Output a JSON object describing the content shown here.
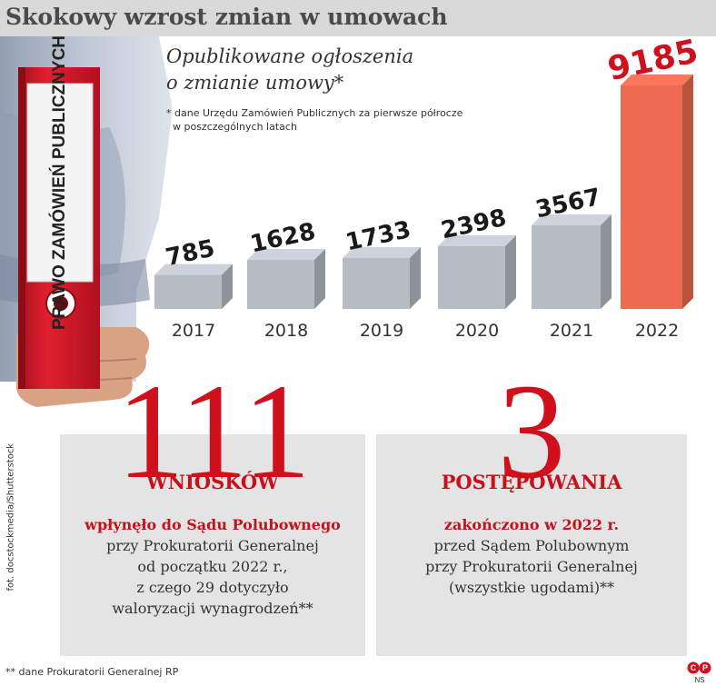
{
  "page": {
    "title": "Skokowy wzrost zmian w umowach",
    "subtitle": "Opublikowane ogłoszenia\no zmianie umowy*",
    "footnote": "* dane Urzędu Zamówień Publicznych za pierwsze półrocze\n  w poszczególnych latach",
    "folder_label": "PRAWO ZAMÓWIEŃ\nPUBLICZNYCH",
    "photo_credit": "fot. docstockmedia/Shutterstock",
    "bottom_note": "** dane Prokuratorii Generalnej RP",
    "logo_text": "NS"
  },
  "chart_data": {
    "type": "bar",
    "categories": [
      "2017",
      "2018",
      "2019",
      "2020",
      "2021",
      "2022"
    ],
    "values": [
      785,
      1628,
      1733,
      2398,
      3567,
      9185
    ],
    "value_labels": [
      "785",
      "1628",
      "1733",
      "2398",
      "3567",
      "9185"
    ],
    "highlight_index": 5,
    "colors": {
      "default": "#b7bcc4",
      "highlight": "#ee6a50",
      "label": "#1a1a1a",
      "highlight_label": "#d0101d"
    }
  },
  "stats": [
    {
      "number": "111",
      "caption": "WNIOSKÓW",
      "lead": "wpłynęło do Sądu Polubownego",
      "lines": [
        "przy Prokuratorii Generalnej",
        "od początku 2022 r.,",
        "z czego 29 dotyczyło",
        "waloryzacji wynagrodzeń**"
      ]
    },
    {
      "number": "3",
      "caption": "POSTĘPOWANIA",
      "lead": "zakończono w 2022 r.",
      "lines": [
        "przed Sądem Polubownym",
        "przy Prokuratorii Generalnej",
        "(wszystkie ugodami)**"
      ]
    }
  ],
  "colors": {
    "accent": "#d0101d",
    "panel": "#e4e4e4",
    "title_bar": "#d9d9d9",
    "folder": "#d6202e"
  }
}
